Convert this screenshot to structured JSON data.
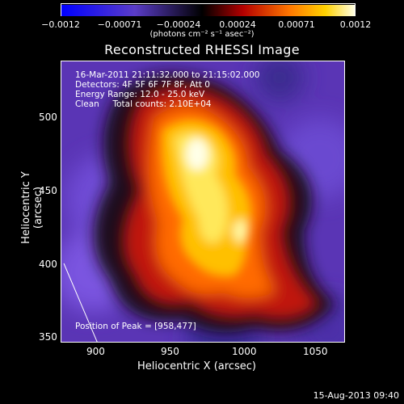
{
  "colorbar": {
    "tick_labels": [
      "−0.0012",
      "−0.00071",
      "−0.00024",
      "0.00024",
      "0.00071",
      "0.0012"
    ],
    "units": "(photons cm⁻² s⁻¹ asec⁻²)",
    "range": [
      -0.0012,
      0.0012
    ]
  },
  "title": "Reconstructed RHESSI Image",
  "info": {
    "time_range": "16-Mar-2011 21:11:32.000 to 21:15:02.000",
    "detectors": "Detectors: 4F 5F 6F 7F 8F, Att 0",
    "energy": "Energy Range: 12.0 - 25.0 keV",
    "clean": "Clean     Total counts: 2.10E+04"
  },
  "peak_label": "Position of Peak = [958,477]",
  "axes": {
    "x_title": "Heliocentric X (arcsec)",
    "y_title": "Heliocentric Y (arcsec)",
    "x_ticks": [
      "900",
      "950",
      "1000",
      "1050"
    ],
    "y_ticks": [
      "500",
      "450",
      "400",
      "350"
    ],
    "x_range": [
      875,
      1067
    ],
    "y_range": [
      347,
      538
    ]
  },
  "timestamp": "15-Aug-2013 09:40"
}
